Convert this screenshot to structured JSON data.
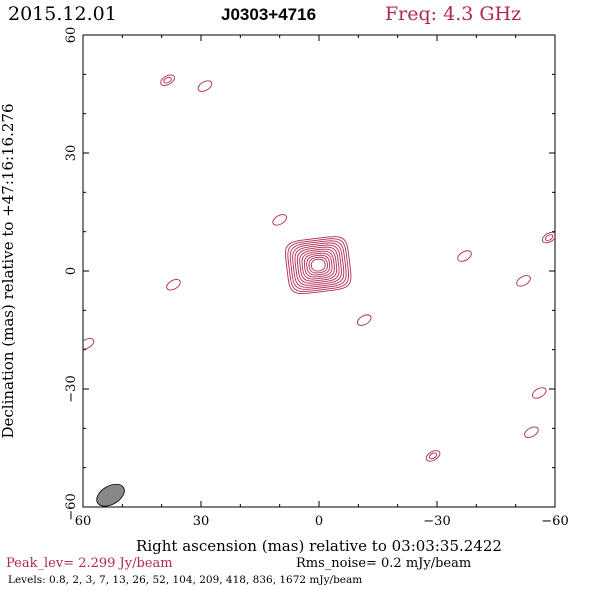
{
  "chart_data": {
    "type": "contour",
    "header": {
      "date": "2015.12.01",
      "source": "J0303+4716",
      "freq": "Freq: 4.3 GHz"
    },
    "xlabel": "Right ascension (mas) relative to 03:03:35.2422",
    "ylabel": "Declination (mas) relative to +47:16:16.276",
    "xlim": [
      60,
      -60
    ],
    "ylim": [
      -60,
      60
    ],
    "xticks": [
      60,
      30,
      0,
      -30,
      -60
    ],
    "yticks": [
      60,
      30,
      0,
      -30,
      -60
    ],
    "xtick_labels": [
      "60",
      "30",
      "0",
      "−30",
      "−60"
    ],
    "ytick_labels": [
      "60",
      "30",
      "0",
      "−30",
      "−60"
    ],
    "footer": {
      "peak": "Peak_lev=  2.299 Jy/beam",
      "rms": "Rms_noise=  0.2 mJy/beam",
      "levels": "Levels: 0.8,   2,   3,   7,   13,   26,   52, 104, 209, 418, 836, 1672 mJy/beam"
    },
    "contour_levels_mJy": [
      0.8,
      2,
      3,
      7,
      13,
      26,
      52,
      104,
      209,
      418,
      836,
      1672
    ],
    "components": [
      {
        "x": 0.2,
        "y": 1.5,
        "kind": "core",
        "rings": 12
      },
      {
        "x": 38.5,
        "y": 48.5,
        "kind": "blob",
        "rings": 2
      },
      {
        "x": 29,
        "y": 47,
        "kind": "blob",
        "rings": 1
      },
      {
        "x": 10,
        "y": 13,
        "kind": "blob",
        "rings": 1
      },
      {
        "x": -37,
        "y": 3.8,
        "kind": "blob",
        "rings": 1
      },
      {
        "x": -58.5,
        "y": 8.5,
        "kind": "blob",
        "rings": 2
      },
      {
        "x": 37,
        "y": -3.5,
        "kind": "blob",
        "rings": 1
      },
      {
        "x": -52,
        "y": -2.5,
        "kind": "blob",
        "rings": 1
      },
      {
        "x": -11.5,
        "y": -12.5,
        "kind": "blob",
        "rings": 1
      },
      {
        "x": 59,
        "y": -18.5,
        "kind": "blob",
        "rings": 1
      },
      {
        "x": -29,
        "y": -47,
        "kind": "blob",
        "rings": 2
      },
      {
        "x": -56,
        "y": -31,
        "kind": "blob",
        "rings": 1
      },
      {
        "x": -54,
        "y": -41,
        "kind": "blob",
        "rings": 1
      }
    ],
    "beam": {
      "x": 53,
      "y": -57,
      "major": 4.6,
      "minor": 2.8,
      "pa_deg": -30
    },
    "colors": {
      "contour": "#b0284f",
      "text": "#000000",
      "beam": "#888888"
    }
  }
}
